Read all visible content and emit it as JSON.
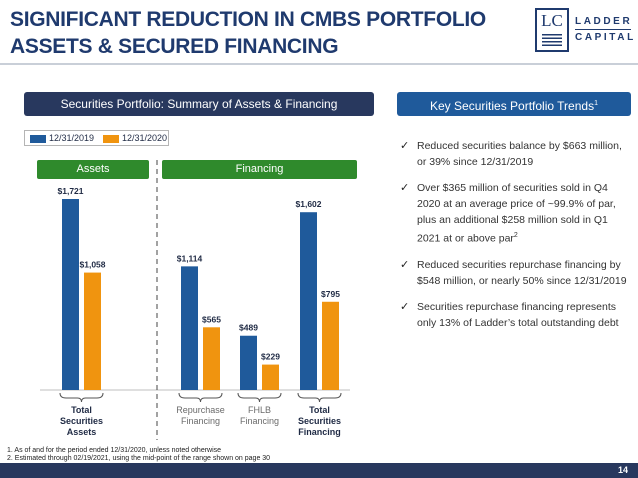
{
  "title": {
    "line1": "SIGNIFICANT REDUCTION IN CMBS PORTFOLIO",
    "line2": "ASSETS & SECURED FINANCING"
  },
  "logo": {
    "mark": "LC",
    "name_line1": "LADDER",
    "name_line2": "CAPITAL"
  },
  "left_header": "Securities Portfolio:  Summary of Assets & Financing",
  "right_header": {
    "text": "Key Securities Portfolio Trends",
    "sup": "1"
  },
  "legend": [
    {
      "label": "12/31/2019",
      "color": "#1f5a9b"
    },
    {
      "label": "12/31/2020",
      "color": "#f0940f"
    }
  ],
  "section_tags": {
    "assets": "Assets",
    "financing": "Financing"
  },
  "chart_data": {
    "type": "bar",
    "categories": [
      "Total Securities Assets",
      "Repurchase Financing",
      "FHLB Financing",
      "Total Securities Financing"
    ],
    "category_label_lines": [
      [
        "Total",
        "Securities",
        "Assets"
      ],
      [
        "Repurchase",
        "Financing"
      ],
      [
        "FHLB",
        "Financing"
      ],
      [
        "Total",
        "Securities",
        "Financing"
      ]
    ],
    "category_bold": [
      true,
      false,
      false,
      true
    ],
    "series": [
      {
        "name": "12/31/2019",
        "values": [
          1721,
          1114,
          489,
          1602
        ],
        "labels": [
          "$1,721",
          "$1,114",
          "$489",
          "$1,602"
        ],
        "color": "#1f5a9b"
      },
      {
        "name": "12/31/2020",
        "values": [
          1058,
          565,
          229,
          795
        ],
        "labels": [
          "$1,058",
          "$565",
          "$229",
          "$795"
        ],
        "color": "#f0940f"
      }
    ],
    "ylim": [
      0,
      1721
    ]
  },
  "trends": [
    {
      "text": "Reduced securities balance by $663 million, or 39% since 12/31/2019",
      "sup": ""
    },
    {
      "text": "Over $365 million of securities sold in Q4 2020 at an average price of ~99.9% of par, plus an additional $258 million sold in Q1 2021 at or above par",
      "sup": "2"
    },
    {
      "text": "Reduced securities repurchase financing by $548 million, or nearly 50% since 12/31/2019",
      "sup": ""
    },
    {
      "text": "Securities repurchase financing represents only 13% of Ladder’s total outstanding debt",
      "sup": ""
    }
  ],
  "check_icon": "✓",
  "footnotes": [
    "1. As of and for the period ended 12/31/2020, unless noted otherwise",
    "2. Estimated through 02/19/2021, using the mid-point of the range shown on page 30"
  ],
  "page_number": "14"
}
